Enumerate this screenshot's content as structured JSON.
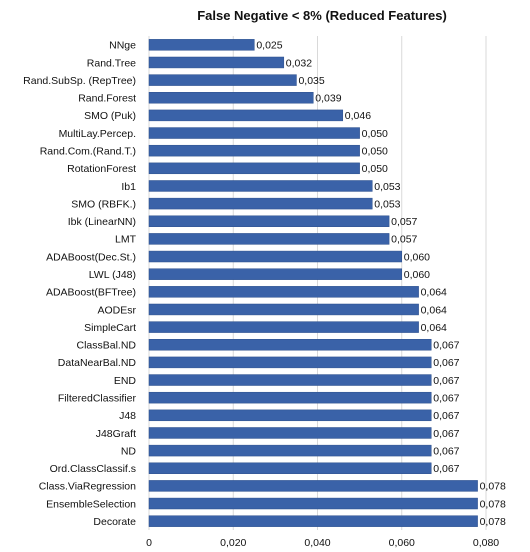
{
  "chart_data": {
    "type": "bar",
    "orientation": "horizontal",
    "title": "False Negative < 8% (Reduced Features)",
    "xlabel": "",
    "ylabel": "",
    "xlim": [
      0,
      0.08
    ],
    "ticks": [
      0,
      0.02,
      0.04,
      0.06,
      0.08
    ],
    "tick_labels": [
      "0",
      "0,020",
      "0,040",
      "0,060",
      "0,080"
    ],
    "grid": true,
    "bar_color": "#3a62a8",
    "categories": [
      "NNge",
      "Rand.Tree",
      "Rand.SubSp. (RepTree)",
      "Rand.Forest",
      "SMO (Puk)",
      "MultiLay.Percep.",
      "Rand.Com.(Rand.T.)",
      "RotationForest",
      "Ib1",
      "SMO (RBFK.)",
      "Ibk (LinearNN)",
      "LMT",
      "ADABoost(Dec.St.)",
      "LWL (J48)",
      "ADABoost(BFTree)",
      "AODEsr",
      "SimpleCart",
      "ClassBal.ND",
      "DataNearBal.ND",
      "END",
      "FilteredClassifier",
      "J48",
      "J48Graft",
      "ND",
      "Ord.ClassClassif.s",
      "Class.ViaRegression",
      "EnsembleSelection",
      "Decorate"
    ],
    "values": [
      0.025,
      0.032,
      0.035,
      0.039,
      0.046,
      0.05,
      0.05,
      0.05,
      0.053,
      0.053,
      0.057,
      0.057,
      0.06,
      0.06,
      0.064,
      0.064,
      0.064,
      0.067,
      0.067,
      0.067,
      0.067,
      0.067,
      0.067,
      0.067,
      0.067,
      0.078,
      0.078,
      0.078
    ],
    "value_labels": [
      "0,025",
      "0,032",
      "0,035",
      "0,039",
      "0,046",
      "0,050",
      "0,050",
      "0,050",
      "0,053",
      "0,053",
      "0,057",
      "0,057",
      "0,060",
      "0,060",
      "0,064",
      "0,064",
      "0,064",
      "0,067",
      "0,067",
      "0,067",
      "0,067",
      "0,067",
      "0,067",
      "0,067",
      "0,067",
      "0,078",
      "0,078",
      "0,078"
    ]
  }
}
